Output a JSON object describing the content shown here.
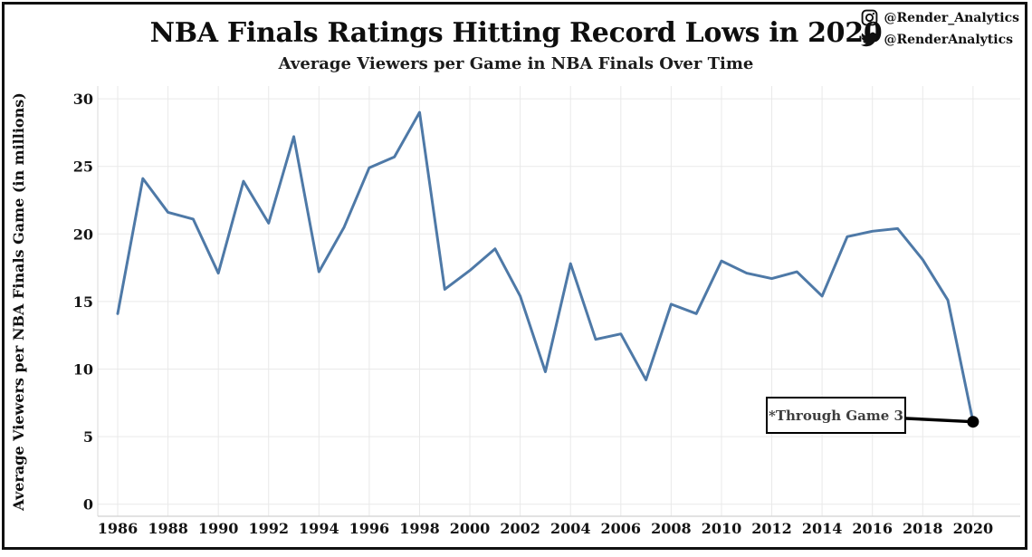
{
  "header": {
    "title": "NBA Finals Ratings Hitting Record Lows in 2020",
    "subtitle": "Average Viewers per Game in NBA Finals Over Time"
  },
  "social": {
    "instagram": {
      "icon": "instagram-icon",
      "handle": "@Render_Analytics"
    },
    "twitter": {
      "icon": "twitter-icon",
      "handle": "@RenderAnalytics"
    }
  },
  "annotation": {
    "label": "*Through Game 3"
  },
  "colors": {
    "line": "#4e79a7",
    "grid": "#e9e9e9",
    "axis_edge": "#d8d8d8",
    "text": "#141414",
    "marker": "#000000",
    "annotation_border": "#000000"
  },
  "chart_data": {
    "type": "line",
    "title": "NBA Finals Ratings Hitting Record Lows in 2020",
    "subtitle": "Average Viewers per Game in NBA Finals Over Time",
    "xlabel": "",
    "ylabel": "Average Viewers per NBA Finals Game (in millions)",
    "series_name": "Average viewers per NBA Finals game (millions)",
    "x": [
      1986,
      1987,
      1988,
      1989,
      1990,
      1991,
      1992,
      1993,
      1994,
      1995,
      1996,
      1997,
      1998,
      1999,
      2000,
      2001,
      2002,
      2003,
      2004,
      2005,
      2006,
      2007,
      2008,
      2009,
      2010,
      2011,
      2012,
      2013,
      2014,
      2015,
      2016,
      2017,
      2018,
      2019,
      2020
    ],
    "values": [
      14.1,
      24.1,
      21.6,
      21.1,
      17.1,
      23.9,
      20.8,
      27.2,
      17.2,
      20.5,
      24.9,
      25.7,
      29.0,
      15.9,
      17.3,
      18.9,
      15.4,
      9.8,
      17.8,
      12.2,
      12.6,
      9.2,
      14.8,
      14.1,
      18.0,
      17.1,
      16.7,
      17.2,
      15.4,
      19.8,
      20.2,
      20.4,
      18.1,
      15.1,
      6.1
    ],
    "xticks": [
      1986,
      1988,
      1990,
      1992,
      1994,
      1996,
      1998,
      2000,
      2002,
      2004,
      2006,
      2008,
      2010,
      2012,
      2014,
      2016,
      2018,
      2020
    ],
    "yticks": [
      0,
      5,
      10,
      15,
      20,
      25,
      30
    ],
    "xlim": [
      1985.2,
      2021.9
    ],
    "ylim": [
      0,
      30
    ],
    "grid": true,
    "legend": "none",
    "line_color": "#4e79a7",
    "marker": {
      "x": 2020,
      "y": 6.1,
      "color": "#000000",
      "note": "*Through Game 3"
    }
  }
}
